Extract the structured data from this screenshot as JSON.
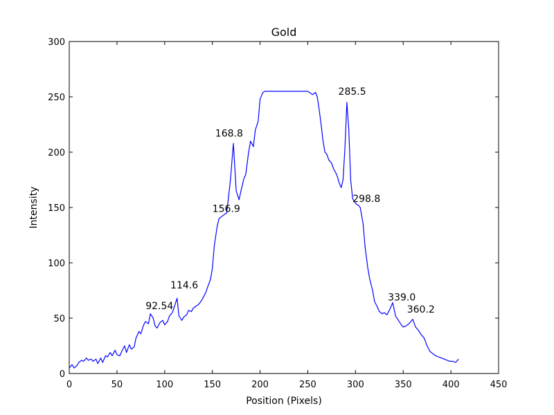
{
  "chart_data": {
    "type": "line",
    "title": "Gold",
    "xlabel": "Position (Pixels)",
    "ylabel": "Intensity",
    "xlim": [
      0,
      450
    ],
    "ylim": [
      0,
      300
    ],
    "xticks": [
      0,
      50,
      100,
      150,
      200,
      250,
      300,
      350,
      400,
      450
    ],
    "yticks": [
      0,
      50,
      100,
      150,
      200,
      250,
      300
    ],
    "grid": false,
    "line_color": "#0000ff",
    "series": [
      {
        "x": [
          0,
          3,
          5,
          8,
          10,
          13,
          15,
          18,
          20,
          23,
          25,
          28,
          30,
          33,
          35,
          38,
          40,
          43,
          45,
          48,
          50,
          53,
          55,
          58,
          60,
          63,
          65,
          68,
          70,
          73,
          75,
          78,
          80,
          83,
          85,
          88,
          90,
          92,
          95,
          98,
          100,
          103,
          105,
          108,
          110,
          113,
          115,
          118,
          120,
          123,
          125,
          128,
          130,
          133,
          135,
          138,
          140,
          143,
          145,
          148,
          150,
          152,
          155,
          157,
          160,
          163,
          165,
          167,
          169,
          172,
          175,
          178,
          180,
          183,
          185,
          188,
          190,
          193,
          195,
          198,
          200,
          203,
          205,
          210,
          220,
          230,
          240,
          250,
          255,
          258,
          260,
          262,
          264,
          266,
          268,
          270,
          272,
          275,
          277,
          279,
          281,
          283,
          285,
          287,
          289,
          291,
          293,
          295,
          297,
          299,
          301,
          303,
          305,
          308,
          310,
          313,
          315,
          318,
          320,
          323,
          325,
          328,
          330,
          333,
          336,
          339,
          342,
          345,
          348,
          350,
          353,
          356,
          360,
          363,
          366,
          369,
          372,
          375,
          378,
          381,
          384,
          387,
          390,
          393,
          396,
          399,
          402,
          405,
          408
        ],
        "y": [
          5,
          8,
          5,
          7,
          10,
          12,
          11,
          14,
          12,
          13,
          11,
          13,
          9,
          14,
          10,
          16,
          15,
          19,
          16,
          21,
          17,
          16,
          20,
          25,
          19,
          26,
          22,
          24,
          32,
          38,
          36,
          44,
          47,
          45,
          54,
          50,
          43,
          41,
          46,
          48,
          44,
          47,
          52,
          55,
          60,
          68,
          52,
          48,
          51,
          53,
          57,
          56,
          59,
          61,
          62,
          65,
          68,
          73,
          78,
          85,
          95,
          115,
          133,
          140,
          142,
          144,
          145,
          160,
          175,
          208,
          165,
          157,
          165,
          176,
          180,
          200,
          210,
          205,
          220,
          228,
          248,
          254,
          255,
          255,
          255,
          255,
          255,
          255,
          252,
          254,
          250,
          238,
          225,
          210,
          200,
          198,
          193,
          190,
          185,
          182,
          178,
          172,
          168,
          175,
          205,
          245,
          220,
          175,
          158,
          155,
          153,
          152,
          150,
          135,
          115,
          95,
          85,
          75,
          65,
          60,
          56,
          54,
          55,
          53,
          58,
          64,
          52,
          48,
          44,
          42,
          43,
          45,
          49,
          42,
          39,
          35,
          32,
          25,
          20,
          18,
          16,
          15,
          14,
          13,
          12,
          11,
          11,
          10,
          13
        ]
      }
    ],
    "annotations": [
      {
        "text": "92.54",
        "x": 80,
        "y": 58
      },
      {
        "text": "114.6",
        "x": 106,
        "y": 77
      },
      {
        "text": "156.9",
        "x": 150,
        "y": 146
      },
      {
        "text": "168.8",
        "x": 153,
        "y": 214
      },
      {
        "text": "285.5",
        "x": 282,
        "y": 252
      },
      {
        "text": "298.8",
        "x": 297,
        "y": 155
      },
      {
        "text": "339.0",
        "x": 334,
        "y": 66
      },
      {
        "text": "360.2",
        "x": 354,
        "y": 55
      }
    ]
  }
}
